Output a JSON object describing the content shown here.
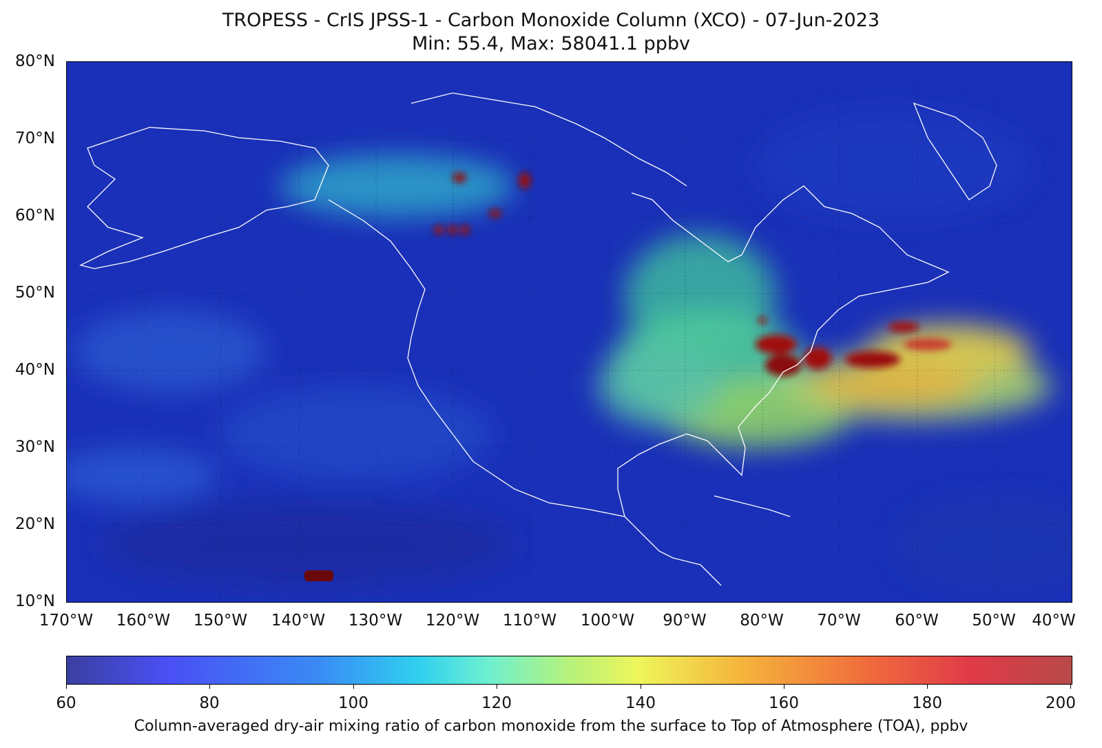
{
  "title_line1": "TROPESS - CrIS JPSS-1 - Carbon Monoxide Column (XCO) - 07-Jun-2023",
  "title_line2": "Min: 55.4, Max: 58041.1 ppbv",
  "lat_labels": [
    "80°N",
    "70°N",
    "60°N",
    "50°N",
    "40°N",
    "30°N",
    "20°N",
    "10°N"
  ],
  "lon_labels": [
    "170°W",
    "160°W",
    "150°W",
    "140°W",
    "130°W",
    "120°W",
    "110°W",
    "100°W",
    "90°W",
    "80°W",
    "70°W",
    "60°W",
    "50°W",
    "40°W"
  ],
  "colorbar": {
    "ticks": [
      "60",
      "80",
      "100",
      "120",
      "140",
      "160",
      "180",
      "200"
    ],
    "label": "Column-averaged dry-air mixing ratio of carbon monoxide from the surface to Top of Atmosphere (TOA), ppbv"
  },
  "colors": {
    "background_ocean": "#1a30b8",
    "low": "#3a3fa0",
    "mid": "#6ef0d0",
    "high": "#b84a4a",
    "hotspot": "#7a0a0a"
  }
}
